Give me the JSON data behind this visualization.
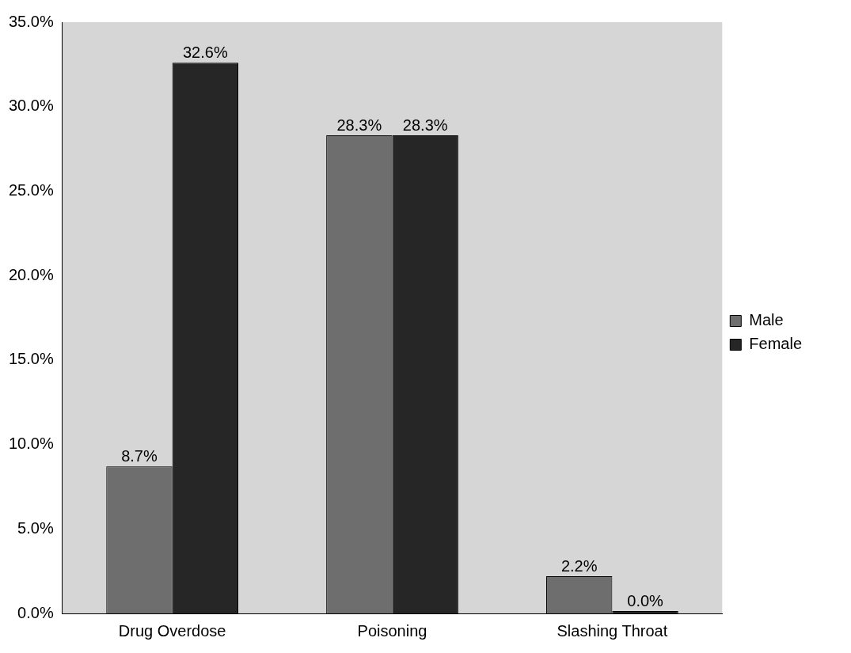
{
  "chart_data": {
    "type": "bar",
    "categories": [
      "Drug Overdose",
      "Poisoning",
      "Slashing Throat"
    ],
    "series": [
      {
        "name": "Male",
        "color": "#6e6e6e",
        "values": [
          8.7,
          28.3,
          2.2
        ],
        "value_labels": [
          "8.7%",
          "28.3%",
          "2.2%"
        ]
      },
      {
        "name": "Female",
        "color": "#262626",
        "values": [
          32.6,
          28.3,
          0
        ],
        "value_labels": [
          "32.6%",
          "28.3%",
          "0.0%"
        ]
      }
    ],
    "ylim": [
      0,
      35
    ],
    "yticks": [
      {
        "value": 0,
        "label": "0.0%"
      },
      {
        "value": 5,
        "label": "5.0%"
      },
      {
        "value": 10,
        "label": "10.0%"
      },
      {
        "value": 15,
        "label": "15.0%"
      },
      {
        "value": 20,
        "label": "20.0%"
      },
      {
        "value": 25,
        "label": "25.0%"
      },
      {
        "value": 30,
        "label": "30.0%"
      },
      {
        "value": 35,
        "label": "35.0%"
      }
    ],
    "grid": false,
    "legend": "right"
  }
}
